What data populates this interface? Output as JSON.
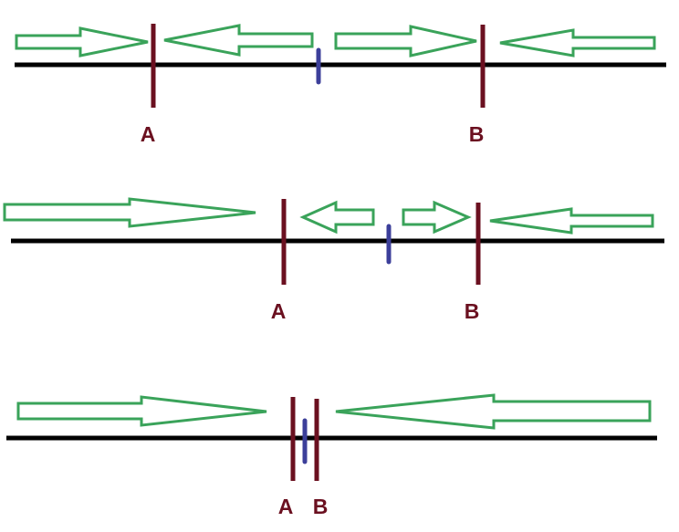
{
  "diagram": {
    "colors": {
      "arrow": "#3aa35a",
      "line": "#000000",
      "marker": "#6b1020",
      "midpoint": "#3c3f9a",
      "label": "#6b1020"
    },
    "rows": [
      {
        "label_a": "A",
        "label_b": "B"
      },
      {
        "label_a": "A",
        "label_b": "B"
      },
      {
        "label_a": "A",
        "label_b": "B"
      }
    ]
  }
}
